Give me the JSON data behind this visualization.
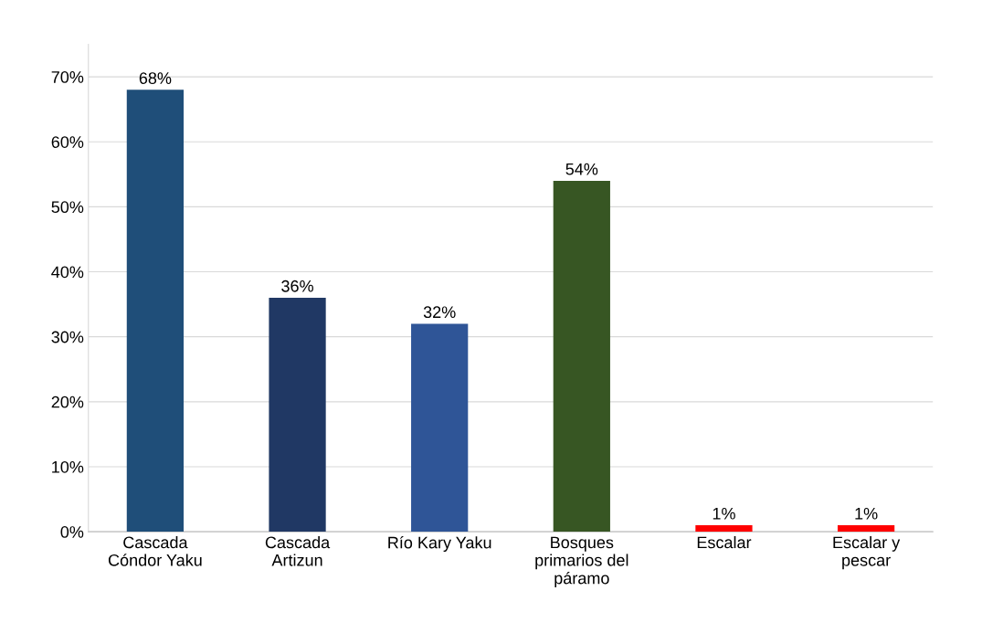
{
  "chart_data": {
    "type": "bar",
    "categories": [
      "Cascada\nCóndor Yaku",
      "Cascada\nArtizun",
      "Río Kary Yaku",
      "Bosques\nprimarios del\npáramo",
      "Escalar",
      "Escalar y\npescar"
    ],
    "values": [
      68,
      36,
      32,
      54,
      1,
      1
    ],
    "colors": [
      "#1f4e79",
      "#203864",
      "#2f5597",
      "#375623",
      "#ff0000",
      "#ff0000"
    ],
    "value_labels": [
      "68%",
      "36%",
      "32%",
      "54%",
      "1%",
      "1%"
    ],
    "ylim": [
      0,
      75
    ],
    "yticks": [
      {
        "value": 0,
        "label": "0%"
      },
      {
        "value": 10,
        "label": "10%"
      },
      {
        "value": 20,
        "label": "20%"
      },
      {
        "value": 30,
        "label": "30%"
      },
      {
        "value": 40,
        "label": "40%"
      },
      {
        "value": 50,
        "label": "50%"
      },
      {
        "value": 60,
        "label": "60%"
      },
      {
        "value": 70,
        "label": "70%"
      }
    ],
    "grid": "y"
  }
}
